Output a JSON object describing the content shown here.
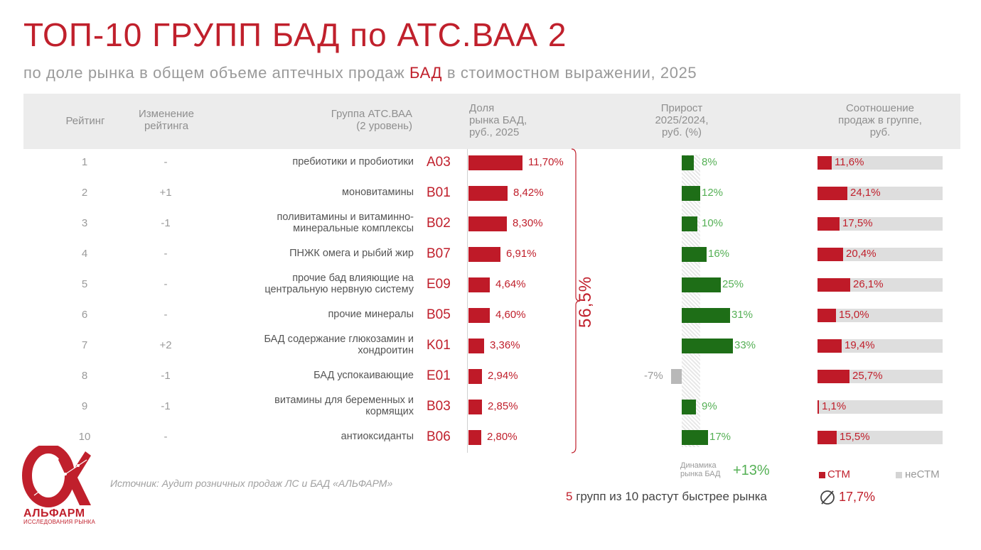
{
  "title": "ТОП-10 ГРУПП БАД по АТС.ВАА 2",
  "subtitle": {
    "before": "по доле рынка в общем объеме аптечных продаж",
    "accent": "БАД",
    "after": "в стоимостном выражении, 2025"
  },
  "headers": {
    "rank": "Рейтинг",
    "change": "Изменение\nрейтинга",
    "group": "Группа АТС.ВАА\n(2 уровень)",
    "share": "Доля\nрынка БАД,\nруб., 2025",
    "growth": "Прирост\n2025/2024,\nруб. (%)",
    "ratio": "Соотношение\nпродаж в группе,\nруб."
  },
  "chart_data": {
    "type": "table",
    "title": "ТОП-10 ГРУПП БАД по АТС.ВАА 2",
    "rows": [
      {
        "rank": "1",
        "change": "-",
        "name": "пребиотики и пробиотики",
        "code": "A03",
        "share": 11.7,
        "share_label": "11,70%",
        "growth": 8,
        "growth_label": "8%",
        "stm": 11.6,
        "stm_label": "11,6%"
      },
      {
        "rank": "2",
        "change": "+1",
        "name": "моновитамины",
        "code": "B01",
        "share": 8.42,
        "share_label": "8,42%",
        "growth": 12,
        "growth_label": "12%",
        "stm": 24.1,
        "stm_label": "24,1%"
      },
      {
        "rank": "3",
        "change": "-1",
        "name": "поливитамины и витаминно-\nминеральные комплексы",
        "code": "B02",
        "share": 8.3,
        "share_label": "8,30%",
        "growth": 10,
        "growth_label": "10%",
        "stm": 17.5,
        "stm_label": "17,5%"
      },
      {
        "rank": "4",
        "change": "-",
        "name": "ПНЖК омега и рыбий жир",
        "code": "B07",
        "share": 6.91,
        "share_label": "6,91%",
        "growth": 16,
        "growth_label": "16%",
        "stm": 20.4,
        "stm_label": "20,4%"
      },
      {
        "rank": "5",
        "change": "-",
        "name": "прочие бад влияющие на\nцентральную нервную систему",
        "code": "E09",
        "share": 4.64,
        "share_label": "4,64%",
        "growth": 25,
        "growth_label": "25%",
        "stm": 26.1,
        "stm_label": "26,1%"
      },
      {
        "rank": "6",
        "change": "-",
        "name": "прочие минералы",
        "code": "B05",
        "share": 4.6,
        "share_label": "4,60%",
        "growth": 31,
        "growth_label": "31%",
        "stm": 15.0,
        "stm_label": "15,0%"
      },
      {
        "rank": "7",
        "change": "+2",
        "name": "БАД содержание глюкозамин и\nхондроитин",
        "code": "K01",
        "share": 3.36,
        "share_label": "3,36%",
        "growth": 33,
        "growth_label": "33%",
        "stm": 19.4,
        "stm_label": "19,4%"
      },
      {
        "rank": "8",
        "change": "-1",
        "name": "БАД успокаивающие",
        "code": "E01",
        "share": 2.94,
        "share_label": "2,94%",
        "growth": -7,
        "growth_label": "-7%",
        "stm": 25.7,
        "stm_label": "25,7%"
      },
      {
        "rank": "9",
        "change": "-1",
        "name": "витамины для беременных и\nкормящих",
        "code": "B03",
        "share": 2.85,
        "share_label": "2,85%",
        "growth": 9,
        "growth_label": "9%",
        "stm": 1.1,
        "stm_label": "1,1%"
      },
      {
        "rank": "10",
        "change": "-",
        "name": "антиоксиданты",
        "code": "B06",
        "share": 2.8,
        "share_label": "2,80%",
        "growth": 17,
        "growth_label": "17%",
        "stm": 15.5,
        "stm_label": "15,5%"
      }
    ],
    "share_max": 11.7,
    "growth_max": 33,
    "market_growth": 13
  },
  "total_share": "56,5%",
  "market": {
    "label": "Динамика\nрынка БАД",
    "value": "+13%"
  },
  "legend": {
    "stm": "СТМ",
    "non_stm": "неСТМ"
  },
  "summary": {
    "count": "5",
    "text": "групп из 10 растут быстрее рынка",
    "average": "17,7%"
  },
  "source": "Источник: Аудит розничных продаж ЛС и БАД «АЛЬФАРМ»",
  "logo": {
    "name": "АЛЬФАРМ",
    "tagline": "ИССЛЕДОВАНИЯ РЫНКА"
  },
  "colors": {
    "accent": "#c0202c",
    "growth": "#1e6e17",
    "negative": "#b8b8b8",
    "ratio_bg": "#dedede"
  }
}
